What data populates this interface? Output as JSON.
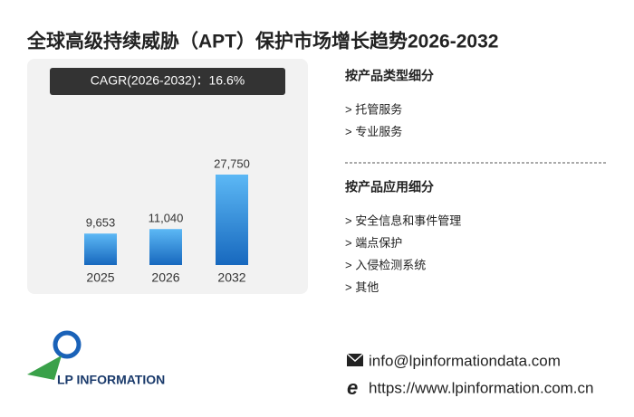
{
  "chart_data": {
    "type": "bar",
    "title": "全球高级持续威胁（APT）保护市场增长趋势2026-2032",
    "cagr": "CAGR(2026-2032)：16.6%",
    "categories": [
      "2025",
      "2026",
      "2032"
    ],
    "values": [
      9653,
      11040,
      27750
    ],
    "value_labels": [
      "9,653",
      "11,040",
      "27,750"
    ],
    "color": "#2f8fe0"
  },
  "segments": {
    "by_type": {
      "title": "按产品类型细分",
      "items": [
        "> 托管服务",
        "> 专业服务"
      ]
    },
    "by_application": {
      "title": "按产品应用细分",
      "items": [
        "> 安全信息和事件管理",
        "> 端点保护",
        "> 入侵检测系统",
        "> 其他"
      ]
    }
  },
  "logo": {
    "text": "LP INFORMATION"
  },
  "contact": {
    "email": "info@lpinformationdata.com",
    "website": "https://www.lpinformation.com.cn"
  }
}
